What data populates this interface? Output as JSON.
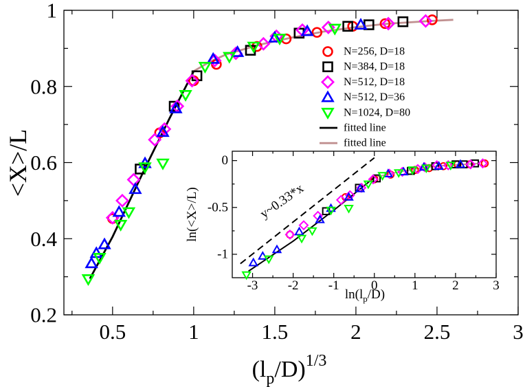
{
  "chart_data": [
    {
      "type": "scatter",
      "panel": "main",
      "xlabel": "(l_p/D)^{1/3}",
      "ylabel": "<X>/L",
      "xlim": [
        0.2,
        3.0
      ],
      "ylim": [
        0.2,
        1.0
      ],
      "xticks": [
        {
          "v": 0.5,
          "label": "0.5"
        },
        {
          "v": 1.0,
          "label": "1"
        },
        {
          "v": 1.5,
          "label": "1.5"
        },
        {
          "v": 2.0,
          "label": "2"
        },
        {
          "v": 2.5,
          "label": "2.5"
        },
        {
          "v": 3.0,
          "label": "3"
        }
      ],
      "yticks": [
        {
          "v": 0.2,
          "label": "0.2"
        },
        {
          "v": 0.4,
          "label": "0.4"
        },
        {
          "v": 0.6,
          "label": "0.6"
        },
        {
          "v": 0.8,
          "label": "0.8"
        },
        {
          "v": 1.0,
          "label": "1"
        }
      ],
      "legend_position": "right",
      "series": [
        {
          "name": "N=256,   D=18",
          "marker": "circle",
          "color": "#ff0000",
          "points": [
            [
              0.5,
              0.453
            ],
            [
              0.79,
              0.678
            ],
            [
              1.0,
              0.815
            ],
            [
              1.14,
              0.858
            ],
            [
              1.39,
              0.905
            ],
            [
              1.57,
              0.925
            ],
            [
              1.76,
              0.942
            ],
            [
              1.98,
              0.958
            ],
            [
              2.18,
              0.965
            ],
            [
              2.47,
              0.975
            ]
          ]
        },
        {
          "name": "N=384,   D=18",
          "marker": "square",
          "color": "#000000",
          "points": [
            [
              0.67,
              0.583
            ],
            [
              0.88,
              0.748
            ],
            [
              1.02,
              0.828
            ],
            [
              1.35,
              0.895
            ],
            [
              1.65,
              0.94
            ],
            [
              1.95,
              0.958
            ],
            [
              2.08,
              0.962
            ],
            [
              2.29,
              0.97
            ]
          ]
        },
        {
          "name": "N=512,   D=18",
          "marker": "diamond",
          "color": "#ff00ff",
          "points": [
            [
              0.5,
              0.455
            ],
            [
              0.56,
              0.5
            ],
            [
              0.63,
              0.555
            ],
            [
              0.76,
              0.66
            ],
            [
              0.82,
              0.688
            ],
            [
              0.9,
              0.748
            ],
            [
              0.99,
              0.815
            ],
            [
              1.13,
              0.868
            ],
            [
              1.26,
              0.887
            ],
            [
              1.43,
              0.912
            ],
            [
              1.51,
              0.932
            ],
            [
              1.67,
              0.948
            ],
            [
              1.83,
              0.955
            ],
            [
              2.2,
              0.965
            ],
            [
              2.43,
              0.972
            ]
          ]
        },
        {
          "name": "N=512,   D=36",
          "marker": "triangle-up",
          "color": "#0000ff",
          "points": [
            [
              0.37,
              0.335
            ],
            [
              0.4,
              0.362
            ],
            [
              0.45,
              0.385
            ],
            [
              0.54,
              0.47
            ],
            [
              0.64,
              0.53
            ],
            [
              0.7,
              0.598
            ],
            [
              0.81,
              0.68
            ],
            [
              0.89,
              0.742
            ],
            [
              1.12,
              0.872
            ],
            [
              1.27,
              0.89
            ],
            [
              1.5,
              0.928
            ],
            [
              1.7,
              0.945
            ],
            [
              2.03,
              0.962
            ]
          ]
        },
        {
          "name": "N=1024, D=80",
          "marker": "triangle-down",
          "color": "#00ff00",
          "points": [
            [
              0.35,
              0.294
            ],
            [
              0.42,
              0.35
            ],
            [
              0.55,
              0.437
            ],
            [
              0.6,
              0.47
            ],
            [
              0.7,
              0.588
            ],
            [
              0.81,
              0.598
            ],
            [
              0.95,
              0.778
            ],
            [
              1.07,
              0.852
            ],
            [
              1.22,
              0.878
            ],
            [
              1.37,
              0.905
            ],
            [
              1.53,
              0.926
            ],
            [
              1.87,
              0.952
            ]
          ]
        },
        {
          "name": "fitted line",
          "marker": "line",
          "color": "#000000",
          "points": [
            [
              0.36,
              0.295
            ],
            [
              0.5,
              0.405
            ],
            [
              0.7,
              0.585
            ],
            [
              0.85,
              0.715
            ],
            [
              1.0,
              0.84
            ]
          ]
        },
        {
          "name": "fitted line",
          "marker": "line",
          "color": "#c09090",
          "points": [
            [
              1.0,
              0.84
            ],
            [
              1.1,
              0.865
            ],
            [
              1.2,
              0.884
            ],
            [
              1.4,
              0.909
            ],
            [
              1.6,
              0.928
            ],
            [
              1.8,
              0.944
            ],
            [
              2.0,
              0.956
            ],
            [
              2.2,
              0.965
            ],
            [
              2.5,
              0.973
            ],
            [
              2.6,
              0.975
            ]
          ]
        }
      ]
    },
    {
      "type": "scatter",
      "panel": "inset",
      "xlabel": "ln(l_p/D)",
      "ylabel": "ln(<X>/L)",
      "xlim": [
        -3.5,
        3.0
      ],
      "ylim": [
        -1.25,
        0.1
      ],
      "xticks": [
        {
          "v": -3,
          "label": "-3"
        },
        {
          "v": -2,
          "label": "-2"
        },
        {
          "v": -1,
          "label": "-1"
        },
        {
          "v": 0,
          "label": "0"
        },
        {
          "v": 1,
          "label": "1"
        },
        {
          "v": 2,
          "label": "2"
        },
        {
          "v": 3,
          "label": "3"
        }
      ],
      "yticks": [
        {
          "v": 0,
          "label": "0"
        },
        {
          "v": -0.5,
          "label": "-0.5"
        },
        {
          "v": -1,
          "label": "-1"
        }
      ],
      "annotation": "y~0.33*x",
      "series": [
        {
          "name": "N=256,   D=18",
          "marker": "circle",
          "color": "#ff0000",
          "points": [
            [
              -2.08,
              -0.79
            ],
            [
              -0.71,
              -0.39
            ],
            [
              0,
              -0.2
            ],
            [
              0.4,
              -0.15
            ],
            [
              1.0,
              -0.1
            ],
            [
              1.35,
              -0.08
            ],
            [
              1.7,
              -0.06
            ],
            [
              2.05,
              -0.04
            ],
            [
              2.35,
              -0.04
            ],
            [
              2.72,
              -0.03
            ]
          ]
        },
        {
          "name": "N=384,   D=18",
          "marker": "square",
          "color": "#000000",
          "points": [
            [
              -1.19,
              -0.54
            ],
            [
              -0.38,
              -0.29
            ],
            [
              0.06,
              -0.19
            ],
            [
              0.9,
              -0.11
            ],
            [
              1.5,
              -0.06
            ],
            [
              2.0,
              -0.04
            ],
            [
              2.2,
              -0.04
            ],
            [
              2.48,
              -0.03
            ]
          ]
        },
        {
          "name": "N=512,   D=18",
          "marker": "diamond",
          "color": "#ff00ff",
          "points": [
            [
              -2.08,
              -0.79
            ],
            [
              -1.74,
              -0.69
            ],
            [
              -1.39,
              -0.59
            ],
            [
              -0.82,
              -0.42
            ],
            [
              -0.6,
              -0.37
            ],
            [
              -0.32,
              -0.29
            ],
            [
              -0.03,
              -0.2
            ],
            [
              0.37,
              -0.14
            ],
            [
              0.69,
              -0.12
            ],
            [
              1.07,
              -0.09
            ],
            [
              1.24,
              -0.07
            ],
            [
              1.54,
              -0.05
            ],
            [
              1.82,
              -0.05
            ],
            [
              2.37,
              -0.04
            ],
            [
              2.67,
              -0.03
            ]
          ]
        },
        {
          "name": "N=512,   D=36",
          "marker": "triangle-up",
          "color": "#0000ff",
          "points": [
            [
              -2.98,
              -1.09
            ],
            [
              -2.75,
              -1.02
            ],
            [
              -2.4,
              -0.95
            ],
            [
              -1.85,
              -0.76
            ],
            [
              -1.34,
              -0.63
            ],
            [
              -1.07,
              -0.51
            ],
            [
              -0.63,
              -0.39
            ],
            [
              -0.35,
              -0.3
            ],
            [
              0.34,
              -0.14
            ],
            [
              0.72,
              -0.12
            ],
            [
              1.22,
              -0.07
            ],
            [
              1.59,
              -0.06
            ],
            [
              2.12,
              -0.04
            ]
          ]
        },
        {
          "name": "N=1024, D=80",
          "marker": "triangle-down",
          "color": "#00ff00",
          "points": [
            [
              -3.15,
              -1.22
            ],
            [
              -2.6,
              -1.05
            ],
            [
              -1.79,
              -0.83
            ],
            [
              -1.53,
              -0.75
            ],
            [
              -1.07,
              -0.53
            ],
            [
              -0.63,
              -0.51
            ],
            [
              -0.15,
              -0.25
            ],
            [
              0.2,
              -0.16
            ],
            [
              0.6,
              -0.13
            ],
            [
              0.94,
              -0.1
            ],
            [
              1.28,
              -0.08
            ],
            [
              1.88,
              -0.05
            ]
          ]
        },
        {
          "name": "fitted line",
          "marker": "line",
          "color": "#000000",
          "points": [
            [
              -3.1,
              -1.18
            ],
            [
              -2.0,
              -0.86
            ],
            [
              -1.0,
              -0.53
            ],
            [
              0.0,
              -0.18
            ]
          ]
        },
        {
          "name": "fitted line",
          "marker": "line",
          "color": "#c09090",
          "points": [
            [
              0.0,
              -0.18
            ],
            [
              0.5,
              -0.13
            ],
            [
              1.0,
              -0.09
            ],
            [
              1.5,
              -0.06
            ],
            [
              2.0,
              -0.045
            ],
            [
              2.6,
              -0.03
            ]
          ]
        },
        {
          "name": "y~0.33*x",
          "marker": "dashed-line",
          "color": "#000000",
          "points": [
            [
              -3.3,
              -1.1
            ],
            [
              0.0,
              0.03
            ]
          ]
        }
      ]
    }
  ]
}
